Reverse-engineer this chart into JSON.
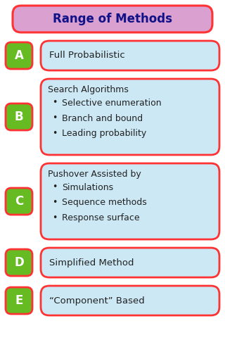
{
  "title": "Range of Methods",
  "title_bg": "#d9a0d0",
  "title_border": "#ff3333",
  "title_text_color": "#111188",
  "box_bg": "#cce8f5",
  "box_border": "#ff3333",
  "label_bg": "#66bb22",
  "label_border": "#ff3333",
  "label_text_color": "white",
  "fig_w": 3.2,
  "fig_h": 5.0,
  "dpi": 100,
  "rows": [
    {
      "label": "A",
      "title": "Full Probabilistic",
      "bullets": []
    },
    {
      "label": "B",
      "title": "Search Algorithms",
      "bullets": [
        "Selective enumeration",
        "Branch and bound",
        "Leading probability"
      ]
    },
    {
      "label": "C",
      "title": "Pushover Assisted by",
      "bullets": [
        "Simulations",
        "Sequence methods",
        "Response surface"
      ]
    },
    {
      "label": "D",
      "title": "Simplified Method",
      "bullets": []
    },
    {
      "label": "E",
      "title": "“Component” Based",
      "bullets": []
    }
  ]
}
